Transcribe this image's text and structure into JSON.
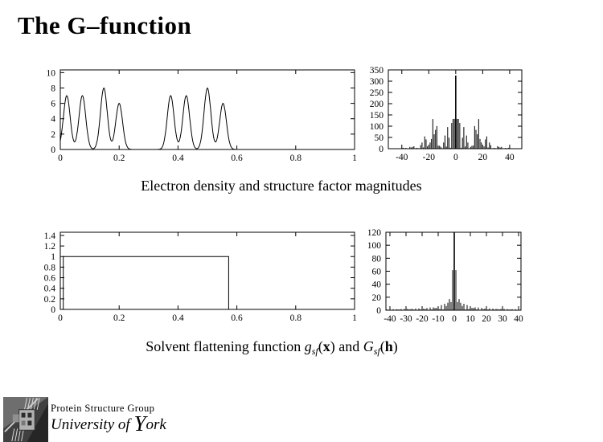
{
  "slide": {
    "title": "The G–function",
    "caption_top": "Electron density and structure factor magnitudes",
    "caption_bottom": {
      "prefix": "Solvent flattening function ",
      "g": "g",
      "g_sub": "sf",
      "paren1": "(",
      "x_arg": "x",
      "paren2": ")",
      "and_word": " and ",
      "G": "G",
      "G_sub": "sf",
      "paren3": "(",
      "h_arg": "h",
      "paren4": ")"
    },
    "footer": {
      "group_name": "Protein Structure Group",
      "university_prefix": "University of ",
      "york_initial": "Y",
      "york_rest": "ork"
    },
    "colors": {
      "ink": "#000000",
      "paper": "#ffffff"
    }
  },
  "chart_data": [
    {
      "id": "electron-density",
      "type": "line",
      "title": "",
      "xlabel": "",
      "ylabel": "",
      "xlim": [
        0,
        1
      ],
      "ylim": [
        0,
        10.35
      ],
      "grid": false,
      "xticks": [
        0,
        0.2,
        0.4,
        0.6,
        0.8,
        1
      ],
      "xtick_labels": [
        "0",
        "0.2",
        "0.4",
        "0.6",
        "0.8",
        "1"
      ],
      "yticks": [
        0,
        2,
        4,
        6,
        8,
        10
      ],
      "ytick_labels": [
        "0",
        "2",
        "4",
        "6",
        "8",
        "10"
      ],
      "model": {
        "kind": "gaussian_sum",
        "centers": [
          0.022,
          0.075,
          0.148,
          0.2,
          0.375,
          0.428,
          0.5,
          0.553
        ],
        "heights": [
          7,
          7,
          8,
          6,
          7,
          7,
          8,
          6
        ],
        "sigma": 0.0115
      }
    },
    {
      "id": "structure-factor-magnitudes",
      "type": "spikes",
      "title": "",
      "xlabel": "",
      "ylabel": "",
      "xlim": [
        -50,
        49
      ],
      "ylim": [
        0,
        350
      ],
      "grid": false,
      "xticks": [
        -40,
        -20,
        0,
        20,
        40
      ],
      "xtick_labels": [
        "-40",
        "-20",
        "0",
        "20",
        "40"
      ],
      "yticks": [
        0,
        50,
        100,
        150,
        200,
        250,
        300,
        350
      ],
      "ytick_labels": [
        "0",
        "50",
        "100",
        "150",
        "200",
        "250",
        "300",
        "350"
      ],
      "model": {
        "kind": "fourier_of_gaussians",
        "centers": [
          0.022,
          0.075,
          0.148,
          0.2,
          0.375,
          0.428,
          0.5,
          0.553
        ],
        "heights": [
          7,
          7,
          8,
          6,
          7,
          7,
          8,
          6
        ],
        "sigma": 0.0115,
        "scale": 325,
        "h_range": [
          -50,
          49
        ]
      },
      "peak_value_at_h0": 325
    },
    {
      "id": "solvent-flattening-function",
      "type": "step",
      "title": "",
      "xlabel": "",
      "ylabel": "",
      "xlim": [
        0,
        1
      ],
      "ylim": [
        0,
        1.46
      ],
      "grid": false,
      "xticks": [
        0,
        0.2,
        0.4,
        0.6,
        0.8,
        1
      ],
      "xtick_labels": [
        "0",
        "0.2",
        "0.4",
        "0.6",
        "0.8",
        "1"
      ],
      "yticks": [
        0,
        0.2,
        0.4,
        0.6,
        0.8,
        1,
        1.2,
        1.4
      ],
      "ytick_labels": [
        "0",
        "0.2",
        "0.4",
        "0.6",
        "0.8",
        "1",
        "1.2",
        "1.4"
      ],
      "points": [
        [
          0,
          0
        ],
        [
          0.01,
          0
        ],
        [
          0.01,
          1
        ],
        [
          0.572,
          1
        ],
        [
          0.572,
          0
        ],
        [
          1,
          0
        ]
      ]
    },
    {
      "id": "g-function-magnitudes",
      "type": "spikes",
      "title": "",
      "xlabel": "",
      "ylabel": "",
      "xlim": [
        -42.5,
        41.5
      ],
      "ylim": [
        0,
        120
      ],
      "grid": false,
      "xticks": [
        -40,
        -30,
        -20,
        -10,
        0,
        10,
        20,
        30,
        40
      ],
      "xtick_labels": [
        "-40",
        "-30",
        "-20",
        "-10",
        "0",
        "10",
        "20",
        "30",
        "40"
      ],
      "yticks": [
        0,
        20,
        40,
        60,
        80,
        100,
        120
      ],
      "ytick_labels": [
        "0",
        "20",
        "40",
        "60",
        "80",
        "100",
        "120"
      ],
      "model": {
        "kind": "sinc",
        "amplitude": 198,
        "width": 0.565,
        "dc": 400,
        "h_range": [
          -42,
          41
        ]
      },
      "clipped_center_spike": true,
      "side_lobe_at_h1": 62
    }
  ]
}
